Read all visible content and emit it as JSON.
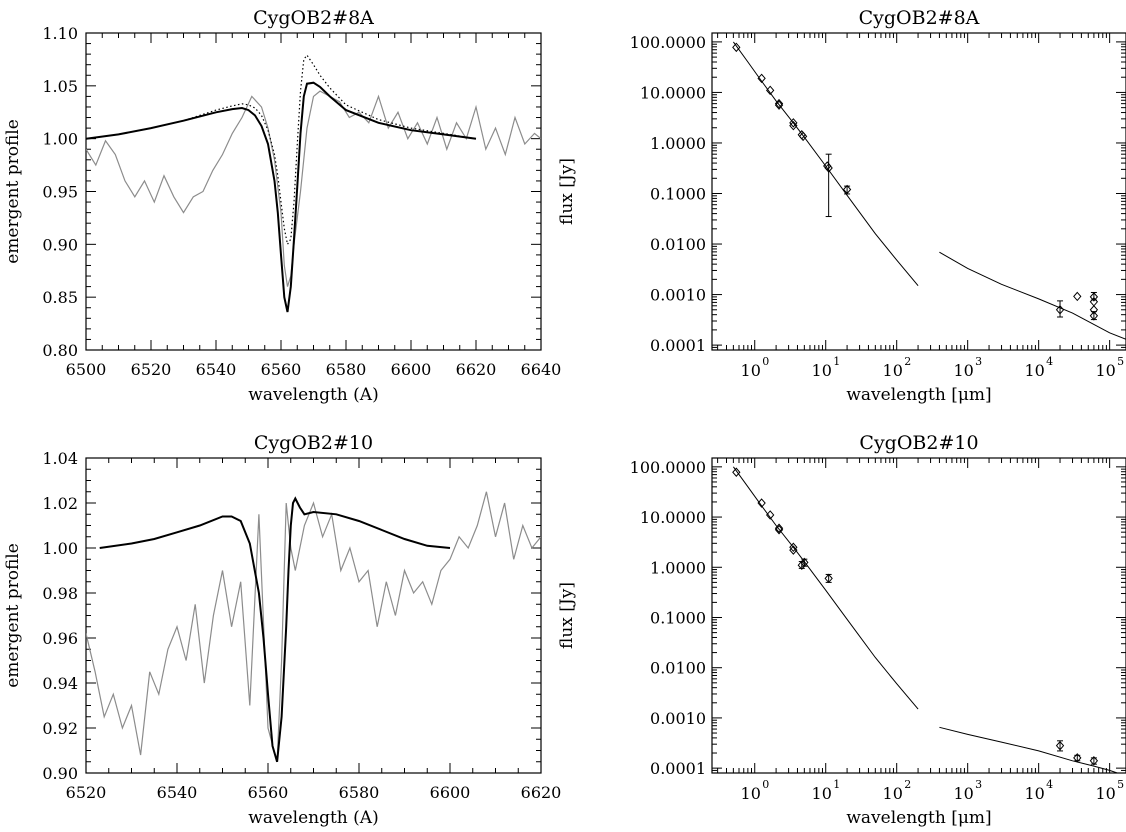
{
  "chart_data": [
    {
      "type": "line",
      "title": "CygOB2#8A",
      "xlabel": "wavelength (A)",
      "ylabel": "emergent profile",
      "xlim": [
        6500,
        6640
      ],
      "ylim": [
        0.8,
        1.1
      ],
      "xticks": [
        "6500",
        "6520",
        "6540",
        "6560",
        "6580",
        "6600",
        "6620",
        "6640"
      ],
      "yticks": [
        "0.80",
        "0.85",
        "0.90",
        "0.95",
        "1.00",
        "1.05",
        "1.10"
      ],
      "series": [
        {
          "style": "gray-noisy",
          "color": "#8c8c8c",
          "x": [
            6500,
            6503,
            6506,
            6509,
            6512,
            6515,
            6518,
            6521,
            6524,
            6527,
            6530,
            6533,
            6536,
            6539,
            6542,
            6545,
            6548,
            6551,
            6554,
            6556,
            6558,
            6560,
            6561,
            6562,
            6563,
            6564,
            6566,
            6568,
            6570,
            6572,
            6575,
            6578,
            6581,
            6584,
            6587,
            6590,
            6593,
            6596,
            6599,
            6602,
            6605,
            6608,
            6611,
            6614,
            6617,
            6620,
            6623,
            6626,
            6629,
            6632,
            6635,
            6638,
            6640
          ],
          "y": [
            0.99,
            0.975,
            0.998,
            0.985,
            0.96,
            0.945,
            0.96,
            0.94,
            0.965,
            0.945,
            0.93,
            0.945,
            0.95,
            0.97,
            0.985,
            1.005,
            1.02,
            1.04,
            1.03,
            1.01,
            0.98,
            0.93,
            0.88,
            0.86,
            0.87,
            0.9,
            0.95,
            1.01,
            1.04,
            1.045,
            1.04,
            1.035,
            1.02,
            1.025,
            1.015,
            1.04,
            1.01,
            1.025,
            1.0,
            1.015,
            0.995,
            1.02,
            0.99,
            1.015,
            1.0,
            1.03,
            0.99,
            1.01,
            0.985,
            1.02,
            0.995,
            1.005,
            1.0
          ]
        },
        {
          "style": "dotted",
          "color": "#000000",
          "x": [
            6500,
            6510,
            6520,
            6530,
            6540,
            6545,
            6548,
            6550,
            6552,
            6554,
            6556,
            6558,
            6559,
            6560,
            6561,
            6562,
            6563,
            6564,
            6565,
            6566,
            6567,
            6568,
            6570,
            6572,
            6575,
            6580,
            6590,
            6600,
            6610,
            6620
          ],
          "y": [
            1.0,
            1.004,
            1.01,
            1.017,
            1.027,
            1.031,
            1.033,
            1.032,
            1.029,
            1.022,
            1.008,
            0.985,
            0.965,
            0.94,
            0.915,
            0.9,
            0.905,
            0.94,
            0.995,
            1.045,
            1.075,
            1.079,
            1.07,
            1.06,
            1.048,
            1.032,
            1.018,
            1.01,
            1.005,
            1.0
          ]
        },
        {
          "style": "solid",
          "color": "#000000",
          "x": [
            6500,
            6510,
            6520,
            6530,
            6540,
            6545,
            6548,
            6550,
            6552,
            6554,
            6556,
            6558,
            6559,
            6560,
            6561,
            6562,
            6563,
            6564,
            6565,
            6566,
            6567,
            6568,
            6570,
            6572,
            6575,
            6580,
            6590,
            6600,
            6610,
            6620
          ],
          "y": [
            1.0,
            1.004,
            1.01,
            1.017,
            1.025,
            1.028,
            1.029,
            1.027,
            1.022,
            1.012,
            0.995,
            0.96,
            0.93,
            0.89,
            0.85,
            0.836,
            0.86,
            0.905,
            0.955,
            1.005,
            1.04,
            1.052,
            1.053,
            1.049,
            1.04,
            1.027,
            1.015,
            1.008,
            1.004,
            1.0
          ]
        }
      ]
    },
    {
      "type": "scatter",
      "title": "CygOB2#8A",
      "xlabel": "wavelength [μm]",
      "ylabel": "flux [Jy]",
      "xscale": "log",
      "yscale": "log",
      "xlim": [
        0.25,
        170000
      ],
      "ylim": [
        8e-05,
        150
      ],
      "xticks": [
        "0",
        "1",
        "2",
        "3",
        "4",
        "5"
      ],
      "yticks": [
        "100.0000",
        "10.0000",
        "1.0000",
        "0.1000",
        "0.0100",
        "0.0010",
        "0.0001"
      ],
      "series": [
        {
          "name": "",
          "style": "solid",
          "x": [
            0.5,
            0.8,
            1.2,
            2,
            3.5,
            5,
            10,
            20,
            50,
            100,
            200
          ],
          "y": [
            100,
            40,
            18,
            6.8,
            2.5,
            1.3,
            0.35,
            0.092,
            0.016,
            0.0048,
            0.0015
          ]
        },
        {
          "name": "",
          "style": "solid",
          "x": [
            400,
            1000,
            3000,
            10000,
            30000,
            100000,
            170000
          ],
          "y": [
            0.0069,
            0.0033,
            0.0016,
            0.00082,
            0.00043,
            0.000175,
            0.00013
          ]
        },
        {
          "name": "",
          "style": "points",
          "x": [
            0.55,
            1.25,
            1.65,
            2.2,
            2.2,
            3.5,
            3.5,
            4.6,
            4.8,
            10.5,
            11,
            20,
            20000,
            35000,
            60000,
            60000,
            60000,
            60000
          ],
          "y": [
            78,
            19,
            11,
            6,
            5.6,
            2.5,
            2.2,
            1.45,
            1.35,
            0.35,
            0.32,
            0.12,
            0.0005,
            0.00092,
            0.0009,
            0.00072,
            0.0005,
            0.00038
          ],
          "err_lo": [
            0,
            0,
            0,
            0,
            0,
            0,
            0,
            0,
            0,
            0,
            0.035,
            0.098,
            0.00036,
            0,
            0.00078,
            0,
            0,
            0.00032
          ],
          "err_hi": [
            0,
            0,
            0,
            0,
            0,
            0,
            0,
            0,
            0,
            0,
            0.6,
            0.14,
            0.00075,
            0,
            0.0011,
            0,
            0,
            0.00046
          ]
        }
      ]
    },
    {
      "type": "line",
      "title": "CygOB2#10",
      "xlabel": "wavelength (A)",
      "ylabel": "emergent profile",
      "xlim": [
        6520,
        6620
      ],
      "ylim": [
        0.9,
        1.04
      ],
      "xticks": [
        "6520",
        "6540",
        "6560",
        "6580",
        "6600",
        "6620"
      ],
      "yticks": [
        "0.90",
        "0.92",
        "0.94",
        "0.96",
        "0.98",
        "1.00",
        "1.02",
        "1.04"
      ],
      "series": [
        {
          "style": "gray-noisy",
          "color": "#8c8c8c",
          "x": [
            6520,
            6522,
            6524,
            6526,
            6528,
            6530,
            6532,
            6534,
            6536,
            6538,
            6540,
            6542,
            6544,
            6546,
            6548,
            6550,
            6552,
            6554,
            6556,
            6558,
            6560,
            6562,
            6563,
            6564,
            6565,
            6566,
            6568,
            6570,
            6572,
            6574,
            6576,
            6578,
            6580,
            6582,
            6584,
            6586,
            6588,
            6590,
            6592,
            6594,
            6596,
            6598,
            6600,
            6602,
            6604,
            6606,
            6608,
            6610,
            6612,
            6614,
            6616,
            6618,
            6620
          ],
          "y": [
            0.962,
            0.945,
            0.925,
            0.935,
            0.92,
            0.93,
            0.908,
            0.945,
            0.935,
            0.955,
            0.965,
            0.95,
            0.975,
            0.94,
            0.97,
            0.99,
            0.965,
            0.985,
            0.93,
            1.015,
            0.92,
            0.905,
            0.95,
            1.02,
            1.0,
            0.99,
            1.01,
            1.02,
            1.005,
            1.015,
            0.99,
            1.0,
            0.985,
            0.99,
            0.965,
            0.985,
            0.97,
            0.99,
            0.98,
            0.985,
            0.975,
            0.99,
            0.995,
            1.005,
            1.0,
            1.01,
            1.025,
            1.005,
            1.02,
            0.995,
            1.01,
            1.0,
            1.005
          ]
        },
        {
          "style": "solid",
          "color": "#000000",
          "x": [
            6523,
            6530,
            6535,
            6540,
            6545,
            6550,
            6552,
            6554,
            6556,
            6558,
            6559,
            6560,
            6561,
            6562,
            6563,
            6564,
            6564.5,
            6565,
            6565.5,
            6566,
            6567,
            6568,
            6570,
            6575,
            6580,
            6585,
            6590,
            6595,
            6600
          ],
          "y": [
            1.0,
            1.002,
            1.004,
            1.007,
            1.01,
            1.014,
            1.014,
            1.012,
            1.002,
            0.98,
            0.96,
            0.935,
            0.912,
            0.905,
            0.925,
            0.965,
            0.99,
            1.01,
            1.02,
            1.022,
            1.018,
            1.015,
            1.016,
            1.015,
            1.012,
            1.008,
            1.004,
            1.001,
            1.0
          ]
        }
      ]
    },
    {
      "type": "scatter",
      "title": "CygOB2#10",
      "xlabel": "wavelength [μm]",
      "ylabel": "flux [Jy]",
      "xscale": "log",
      "yscale": "log",
      "xlim": [
        0.25,
        170000
      ],
      "ylim": [
        8e-05,
        150
      ],
      "xticks": [
        "0",
        "1",
        "2",
        "3",
        "4",
        "5"
      ],
      "yticks": [
        "100.0000",
        "10.0000",
        "1.0000",
        "0.1000",
        "0.0100",
        "0.0010",
        "0.0001"
      ],
      "series": [
        {
          "name": "",
          "style": "solid",
          "x": [
            0.5,
            0.8,
            1.2,
            2,
            3.5,
            5,
            10,
            20,
            50,
            100,
            200
          ],
          "y": [
            100,
            40,
            18,
            6.8,
            2.5,
            1.3,
            0.35,
            0.092,
            0.016,
            0.0048,
            0.0015
          ]
        },
        {
          "name": "",
          "style": "solid",
          "x": [
            400,
            1000,
            3000,
            10000,
            30000,
            60000,
            100000,
            170000
          ],
          "y": [
            0.00065,
            0.00047,
            0.00033,
            0.00022,
            0.00014,
            0.00011,
            9e-05,
            7e-05
          ]
        },
        {
          "name": "",
          "style": "points",
          "x": [
            0.55,
            1.25,
            1.65,
            2.2,
            2.2,
            3.5,
            3.5,
            4.6,
            5,
            11,
            20000,
            35000,
            60000
          ],
          "y": [
            78,
            19,
            11,
            6,
            5.6,
            2.5,
            2.2,
            1.1,
            1.25,
            0.6,
            0.00028,
            0.00016,
            0.00014
          ],
          "err_lo": [
            0,
            0,
            0,
            0,
            0,
            0,
            0,
            0.95,
            1.05,
            0.5,
            0.00022,
            0.00014,
            0.00012
          ],
          "err_hi": [
            0,
            0,
            0,
            0,
            0,
            0,
            0,
            1.3,
            1.45,
            0.72,
            0.00035,
            0.00018,
            0.00016
          ]
        }
      ]
    }
  ]
}
